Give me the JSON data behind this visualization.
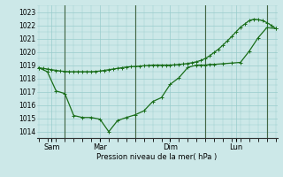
{
  "background_color": "#cce8e8",
  "grid_color": "#99cccc",
  "line_color": "#1a6e1a",
  "xlabel": "Pression niveau de la mer( hPa )",
  "ylim": [
    1013.5,
    1023.5
  ],
  "yticks": [
    1014,
    1015,
    1016,
    1017,
    1018,
    1019,
    1020,
    1021,
    1022,
    1023
  ],
  "series1_x": [
    0,
    0.25,
    0.5,
    0.75,
    1.0,
    1.25,
    1.5,
    1.75,
    2.0,
    2.25,
    2.5,
    2.75,
    3.0,
    3.25,
    3.5,
    3.75,
    4.0,
    4.25,
    4.5,
    4.75,
    5.0,
    5.25,
    5.5,
    5.75,
    6.0,
    6.25,
    6.5,
    6.75,
    7.0,
    7.25,
    7.5,
    7.75,
    8.0,
    8.25,
    8.5,
    8.75,
    9.0,
    9.25,
    9.5,
    9.75,
    10.0,
    10.25,
    10.5,
    10.75,
    11.0,
    11.25,
    11.5,
    11.75,
    12.0,
    12.25,
    12.5,
    12.75,
    13.0,
    13.25,
    13.5
  ],
  "series1_y": [
    1018.8,
    1018.75,
    1018.7,
    1018.65,
    1018.6,
    1018.55,
    1018.52,
    1018.5,
    1018.5,
    1018.5,
    1018.5,
    1018.5,
    1018.5,
    1018.52,
    1018.55,
    1018.6,
    1018.65,
    1018.7,
    1018.75,
    1018.8,
    1018.85,
    1018.88,
    1018.9,
    1018.92,
    1018.95,
    1018.97,
    1019.0,
    1019.0,
    1019.0,
    1019.0,
    1019.0,
    1019.02,
    1019.05,
    1019.08,
    1019.12,
    1019.18,
    1019.25,
    1019.35,
    1019.5,
    1019.7,
    1019.95,
    1020.2,
    1020.5,
    1020.82,
    1021.15,
    1021.5,
    1021.85,
    1022.1,
    1022.35,
    1022.45,
    1022.42,
    1022.35,
    1022.2,
    1022.0,
    1021.75
  ],
  "series2_x": [
    0,
    0.5,
    1.0,
    1.5,
    2.0,
    2.5,
    3.0,
    3.5,
    4.0,
    4.5,
    5.0,
    5.5,
    6.0,
    6.5,
    7.0,
    7.5,
    8.0,
    8.5,
    9.0,
    9.25,
    9.5,
    9.75,
    10.0,
    10.5,
    11.0,
    11.5,
    12.0,
    12.5,
    13.0,
    13.5
  ],
  "series2_y": [
    1018.8,
    1018.5,
    1017.05,
    1016.85,
    1015.2,
    1015.05,
    1015.05,
    1014.92,
    1013.98,
    1014.82,
    1015.05,
    1015.25,
    1015.55,
    1016.25,
    1016.55,
    1017.55,
    1018.05,
    1018.82,
    1019.0,
    1019.0,
    1019.0,
    1019.05,
    1019.05,
    1019.1,
    1019.15,
    1019.2,
    1020.05,
    1021.05,
    1021.82,
    1021.75
  ],
  "vline_positions": [
    1.5,
    5.5,
    9.5,
    13.0
  ],
  "xtick_labels": [
    "Sam",
    "Mar",
    "Dim",
    "Lun"
  ],
  "xtick_positions": [
    0.75,
    3.5,
    7.5,
    11.25
  ],
  "xlim": [
    -0.1,
    13.6
  ]
}
